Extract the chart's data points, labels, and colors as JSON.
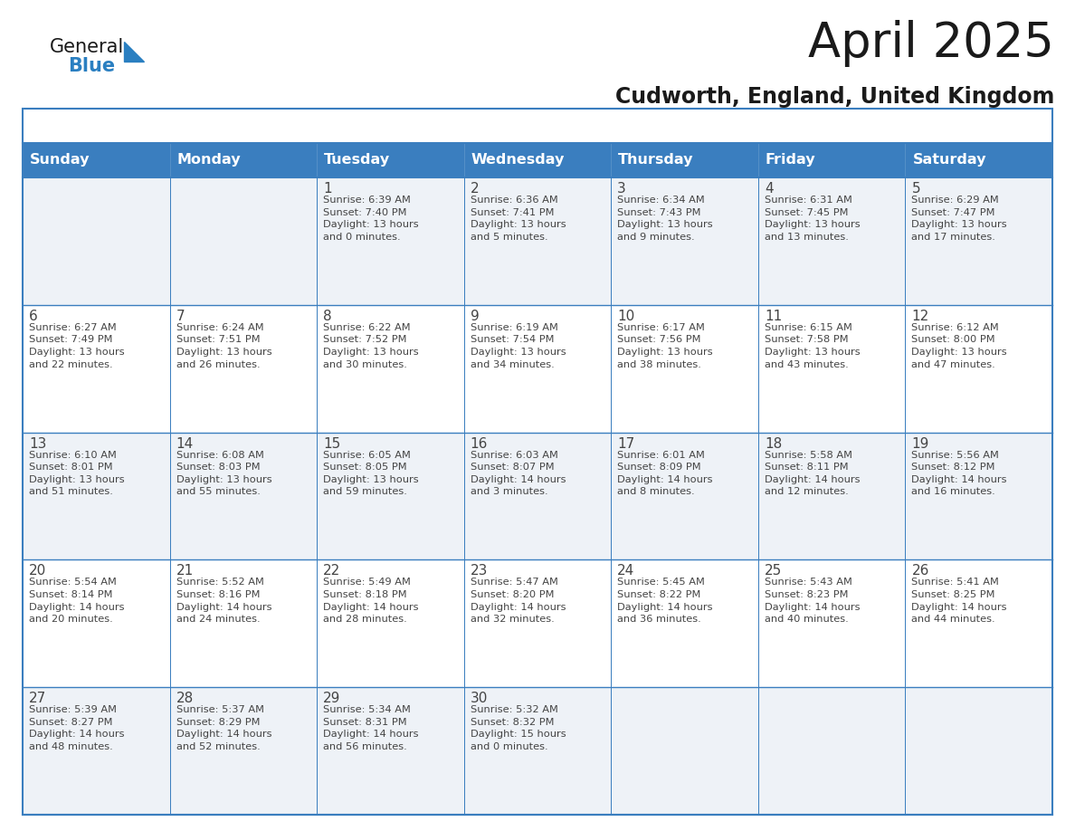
{
  "title": "April 2025",
  "subtitle": "Cudworth, England, United Kingdom",
  "header_bg_color": "#3a7ebf",
  "header_text_color": "#ffffff",
  "day_names": [
    "Sunday",
    "Monday",
    "Tuesday",
    "Wednesday",
    "Thursday",
    "Friday",
    "Saturday"
  ],
  "row_colors": [
    "#eef2f7",
    "#ffffff"
  ],
  "border_color": "#3a7ebf",
  "text_color": "#444444",
  "title_color": "#1a1a1a",
  "subtitle_color": "#1a1a1a",
  "calendar": [
    [
      {
        "day": "",
        "info": ""
      },
      {
        "day": "",
        "info": ""
      },
      {
        "day": "1",
        "info": "Sunrise: 6:39 AM\nSunset: 7:40 PM\nDaylight: 13 hours\nand 0 minutes."
      },
      {
        "day": "2",
        "info": "Sunrise: 6:36 AM\nSunset: 7:41 PM\nDaylight: 13 hours\nand 5 minutes."
      },
      {
        "day": "3",
        "info": "Sunrise: 6:34 AM\nSunset: 7:43 PM\nDaylight: 13 hours\nand 9 minutes."
      },
      {
        "day": "4",
        "info": "Sunrise: 6:31 AM\nSunset: 7:45 PM\nDaylight: 13 hours\nand 13 minutes."
      },
      {
        "day": "5",
        "info": "Sunrise: 6:29 AM\nSunset: 7:47 PM\nDaylight: 13 hours\nand 17 minutes."
      }
    ],
    [
      {
        "day": "6",
        "info": "Sunrise: 6:27 AM\nSunset: 7:49 PM\nDaylight: 13 hours\nand 22 minutes."
      },
      {
        "day": "7",
        "info": "Sunrise: 6:24 AM\nSunset: 7:51 PM\nDaylight: 13 hours\nand 26 minutes."
      },
      {
        "day": "8",
        "info": "Sunrise: 6:22 AM\nSunset: 7:52 PM\nDaylight: 13 hours\nand 30 minutes."
      },
      {
        "day": "9",
        "info": "Sunrise: 6:19 AM\nSunset: 7:54 PM\nDaylight: 13 hours\nand 34 minutes."
      },
      {
        "day": "10",
        "info": "Sunrise: 6:17 AM\nSunset: 7:56 PM\nDaylight: 13 hours\nand 38 minutes."
      },
      {
        "day": "11",
        "info": "Sunrise: 6:15 AM\nSunset: 7:58 PM\nDaylight: 13 hours\nand 43 minutes."
      },
      {
        "day": "12",
        "info": "Sunrise: 6:12 AM\nSunset: 8:00 PM\nDaylight: 13 hours\nand 47 minutes."
      }
    ],
    [
      {
        "day": "13",
        "info": "Sunrise: 6:10 AM\nSunset: 8:01 PM\nDaylight: 13 hours\nand 51 minutes."
      },
      {
        "day": "14",
        "info": "Sunrise: 6:08 AM\nSunset: 8:03 PM\nDaylight: 13 hours\nand 55 minutes."
      },
      {
        "day": "15",
        "info": "Sunrise: 6:05 AM\nSunset: 8:05 PM\nDaylight: 13 hours\nand 59 minutes."
      },
      {
        "day": "16",
        "info": "Sunrise: 6:03 AM\nSunset: 8:07 PM\nDaylight: 14 hours\nand 3 minutes."
      },
      {
        "day": "17",
        "info": "Sunrise: 6:01 AM\nSunset: 8:09 PM\nDaylight: 14 hours\nand 8 minutes."
      },
      {
        "day": "18",
        "info": "Sunrise: 5:58 AM\nSunset: 8:11 PM\nDaylight: 14 hours\nand 12 minutes."
      },
      {
        "day": "19",
        "info": "Sunrise: 5:56 AM\nSunset: 8:12 PM\nDaylight: 14 hours\nand 16 minutes."
      }
    ],
    [
      {
        "day": "20",
        "info": "Sunrise: 5:54 AM\nSunset: 8:14 PM\nDaylight: 14 hours\nand 20 minutes."
      },
      {
        "day": "21",
        "info": "Sunrise: 5:52 AM\nSunset: 8:16 PM\nDaylight: 14 hours\nand 24 minutes."
      },
      {
        "day": "22",
        "info": "Sunrise: 5:49 AM\nSunset: 8:18 PM\nDaylight: 14 hours\nand 28 minutes."
      },
      {
        "day": "23",
        "info": "Sunrise: 5:47 AM\nSunset: 8:20 PM\nDaylight: 14 hours\nand 32 minutes."
      },
      {
        "day": "24",
        "info": "Sunrise: 5:45 AM\nSunset: 8:22 PM\nDaylight: 14 hours\nand 36 minutes."
      },
      {
        "day": "25",
        "info": "Sunrise: 5:43 AM\nSunset: 8:23 PM\nDaylight: 14 hours\nand 40 minutes."
      },
      {
        "day": "26",
        "info": "Sunrise: 5:41 AM\nSunset: 8:25 PM\nDaylight: 14 hours\nand 44 minutes."
      }
    ],
    [
      {
        "day": "27",
        "info": "Sunrise: 5:39 AM\nSunset: 8:27 PM\nDaylight: 14 hours\nand 48 minutes."
      },
      {
        "day": "28",
        "info": "Sunrise: 5:37 AM\nSunset: 8:29 PM\nDaylight: 14 hours\nand 52 minutes."
      },
      {
        "day": "29",
        "info": "Sunrise: 5:34 AM\nSunset: 8:31 PM\nDaylight: 14 hours\nand 56 minutes."
      },
      {
        "day": "30",
        "info": "Sunrise: 5:32 AM\nSunset: 8:32 PM\nDaylight: 15 hours\nand 0 minutes."
      },
      {
        "day": "",
        "info": ""
      },
      {
        "day": "",
        "info": ""
      },
      {
        "day": "",
        "info": ""
      }
    ]
  ],
  "logo_text_general": "General",
  "logo_text_blue": "Blue",
  "logo_triangle_color": "#2a7fc1",
  "logo_general_color": "#1a1a1a"
}
